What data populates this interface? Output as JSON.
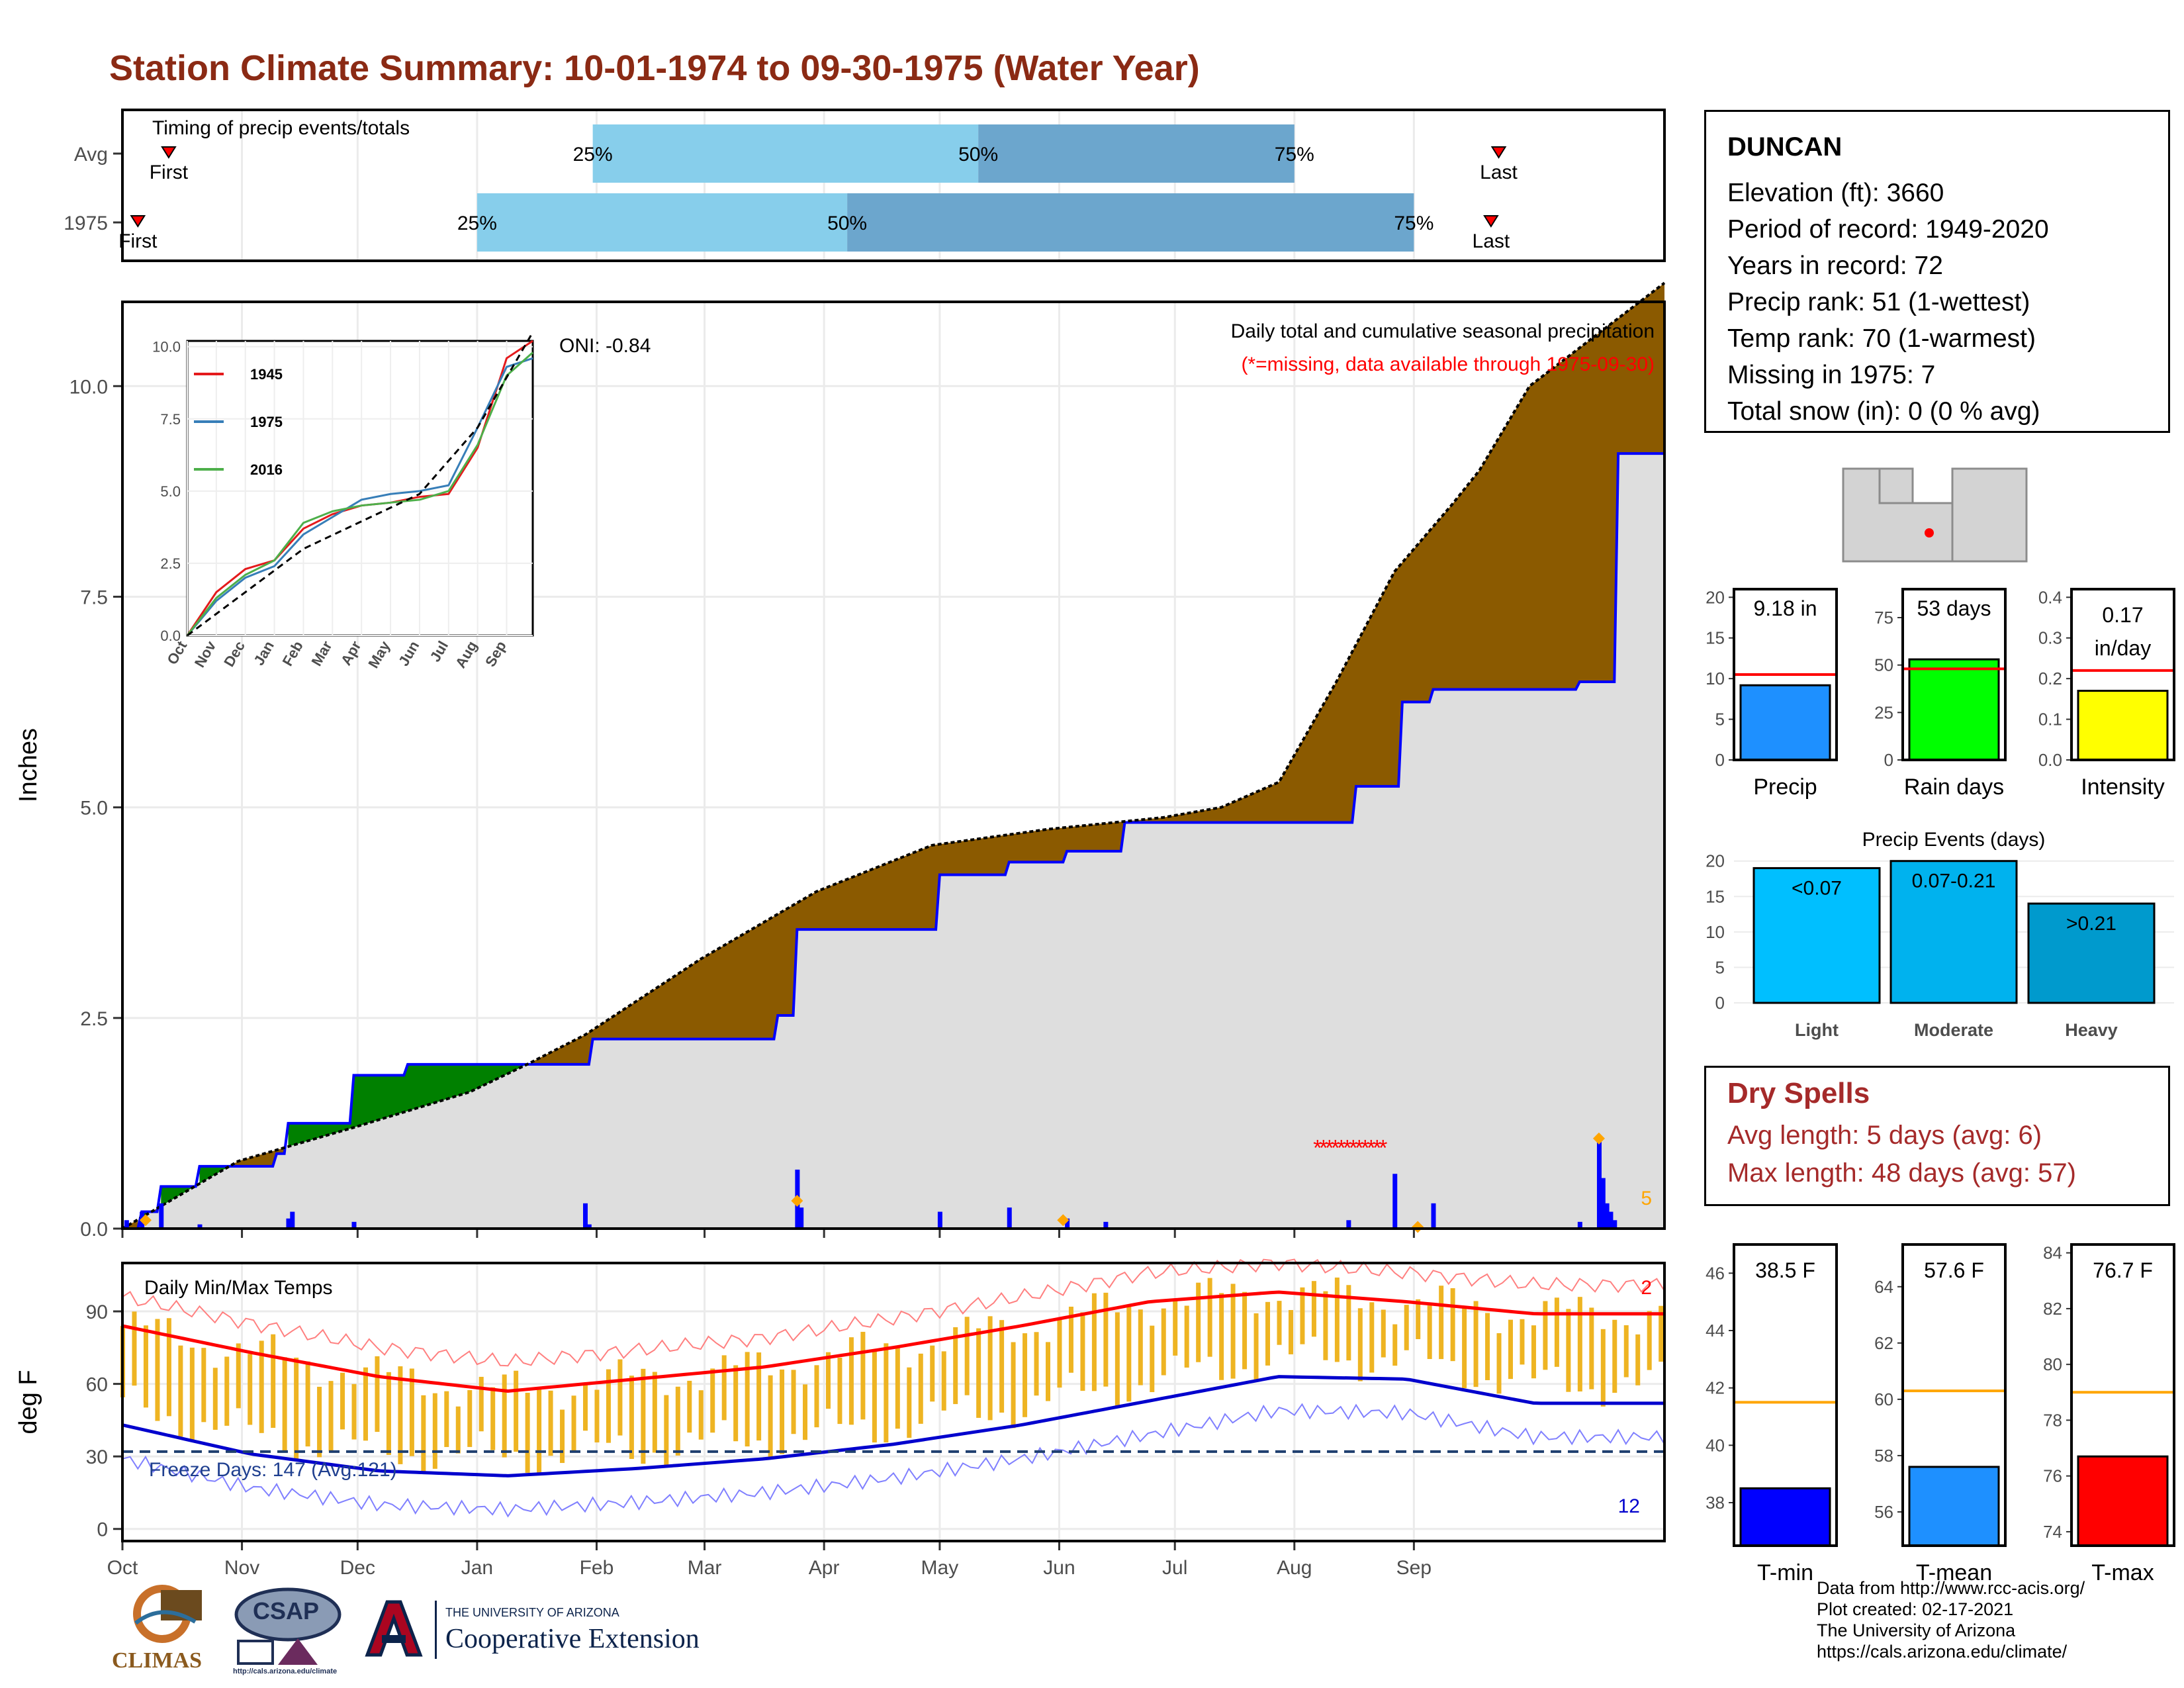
{
  "title": "Station Climate Summary: 10-01-1974 to 09-30-1975 (Water Year)",
  "station": {
    "name": "DUNCAN",
    "lines": [
      "Elevation (ft): 3660",
      "Period of record: 1949-2020",
      "Years in record: 72",
      "Precip rank: 51 (1-wettest)",
      "Temp rank: 70 (1-warmest)",
      "Missing in 1975: 7",
      "Total snow (in): 0 (0 % avg)"
    ]
  },
  "dry_spells": {
    "title": "Dry Spells",
    "avg": "Avg length: 5 days (avg: 6)",
    "max": "Max length: 48 days (avg: 57)"
  },
  "footer": {
    "lines": [
      "Data from http://www.rcc-acis.org/",
      "Plot created: 02-17-2021",
      "The University of Arizona",
      "https://cals.arizona.edu/climate/"
    ]
  },
  "logos": {
    "climas": "CLIMAS",
    "csap": "CSAP",
    "csap_url": "http://cals.arizona.edu/climate",
    "ua_small": "THE UNIVERSITY OF ARIZONA",
    "ua_big": "Cooperative Extension"
  },
  "colors": {
    "title": "#8b2a14",
    "wet": "#008000",
    "dry": "#8b5a00",
    "record_line": "#0000ff",
    "avg_line": "#000000",
    "base_fill": "#dedede",
    "temp_bar": "#eeb422",
    "precip_bar_light": "#87ceeb",
    "precip_bar_dark": "#6ca6cd"
  },
  "chart_data": [
    {
      "type": "bar",
      "id": "timing",
      "title": "Timing of precip events/totals",
      "rows": [
        {
          "label": "Avg",
          "first": "Oct 13",
          "q25": "Jan 31",
          "q50": "May 11",
          "q75": "Aug 1",
          "last": "Sep 23"
        },
        {
          "label": "1975",
          "first": "Oct 5",
          "q25": "Jan 1",
          "q50": "Apr 7",
          "q75": "Sep 1",
          "last": "Sep 21"
        }
      ],
      "labels": {
        "first": "First",
        "last": "Last",
        "q25": "25%",
        "q50": "50%",
        "q75": "75%"
      }
    },
    {
      "type": "area",
      "id": "cumulative",
      "title": "Daily total and cumulative seasonal precipitation",
      "subtitle": "(*=missing, data available through 1975-09-30)",
      "annotation": "ONI: -0.84",
      "ylabel": "Inches",
      "ylim": [
        0,
        11
      ],
      "yticks": [
        0.0,
        2.5,
        5.0,
        7.5,
        10.0
      ],
      "corner_count": "5",
      "avg_cumulative": [
        [
          0,
          0
        ],
        [
          30,
          0.8
        ],
        [
          60,
          1.2
        ],
        [
          90,
          1.62
        ],
        [
          105,
          1.95
        ],
        [
          120,
          2.3
        ],
        [
          150,
          3.2
        ],
        [
          180,
          4.0
        ],
        [
          210,
          4.55
        ],
        [
          240,
          4.74
        ],
        [
          270,
          4.88
        ],
        [
          285,
          5.0
        ],
        [
          300,
          5.3
        ],
        [
          315,
          6.5
        ],
        [
          330,
          7.8
        ],
        [
          345,
          8.6
        ],
        [
          352,
          9.0
        ],
        [
          365,
          10.0
        ]
      ],
      "observed_cumulative": [
        [
          0,
          0
        ],
        [
          5,
          0.2
        ],
        [
          10,
          0.5
        ],
        [
          20,
          0.74
        ],
        [
          40,
          0.89
        ],
        [
          43,
          1.25
        ],
        [
          60,
          1.82
        ],
        [
          74,
          1.95
        ],
        [
          120,
          1.95
        ],
        [
          122,
          2.25
        ],
        [
          170,
          2.53
        ],
        [
          175,
          3.55
        ],
        [
          212,
          4.2
        ],
        [
          230,
          4.35
        ],
        [
          245,
          4.48
        ],
        [
          260,
          4.82
        ],
        [
          300,
          4.82
        ],
        [
          320,
          5.25
        ],
        [
          332,
          6.25
        ],
        [
          340,
          6.4
        ],
        [
          378,
          6.49
        ],
        [
          388,
          9.2
        ],
        [
          400,
          9.2
        ]
      ],
      "daily_bars": [
        [
          1,
          0.1
        ],
        [
          5,
          0.2
        ],
        [
          10,
          0.3
        ],
        [
          20,
          0.05
        ],
        [
          43,
          0.12
        ],
        [
          44,
          0.2
        ],
        [
          60,
          0.08
        ],
        [
          120,
          0.3
        ],
        [
          121,
          0.05
        ],
        [
          175,
          0.7
        ],
        [
          176,
          0.25
        ],
        [
          212,
          0.2
        ],
        [
          230,
          0.25
        ],
        [
          245,
          0.12
        ],
        [
          255,
          0.08
        ],
        [
          318,
          0.1
        ],
        [
          330,
          0.65
        ],
        [
          340,
          0.3
        ],
        [
          378,
          0.08
        ],
        [
          383,
          1.1
        ],
        [
          384,
          0.6
        ],
        [
          385,
          0.3
        ],
        [
          386,
          0.2
        ],
        [
          387,
          0.1
        ]
      ],
      "missing_marks": [
        [
          310,
          0.98
        ]
      ],
      "inset": {
        "yticks": [
          0.0,
          2.5,
          5.0,
          7.5,
          10.0
        ],
        "xticks": [
          "Oct",
          "Nov",
          "Dec",
          "Jan",
          "Feb",
          "Mar",
          "Apr",
          "May",
          "Jun",
          "Jul",
          "Aug",
          "Sep"
        ],
        "series": [
          {
            "name": "1945",
            "color": "#e41a1c"
          },
          {
            "name": "1975",
            "color": "#377eb8"
          },
          {
            "name": "2016",
            "color": "#4daf4a"
          }
        ]
      }
    },
    {
      "type": "bar",
      "id": "temps",
      "title": "Daily Min/Max Temps",
      "ylabel": "deg F",
      "ylim": [
        -5,
        110
      ],
      "yticks": [
        0,
        30,
        60,
        90
      ],
      "x": [
        "Oct",
        "Nov",
        "Dec",
        "Jan",
        "Feb",
        "Mar",
        "Apr",
        "May",
        "Jun",
        "Jul",
        "Aug",
        "Sep"
      ],
      "freeze_text": "Freeze Days: 147 (Avg:121)",
      "freeze_line": 32,
      "top_count": "2",
      "bottom_count": "12",
      "avg_max_monthly": [
        84,
        73,
        63,
        57,
        62,
        67,
        75,
        84,
        94,
        98,
        94,
        89
      ],
      "avg_min_monthly": [
        43,
        31,
        24,
        22,
        25,
        29,
        35,
        43,
        53,
        63,
        62,
        52
      ]
    },
    {
      "type": "bar",
      "id": "precip_total",
      "categories": [
        "Precip"
      ],
      "values": [
        9.18
      ],
      "label": "9.18 in",
      "avg": 10.5,
      "ylim": [
        0,
        21
      ],
      "yticks": [
        0,
        5,
        10,
        15,
        20
      ],
      "color": "#1e90ff"
    },
    {
      "type": "bar",
      "id": "rain_days",
      "categories": [
        "Rain days"
      ],
      "values": [
        53
      ],
      "label": "53 days",
      "avg": 48,
      "ylim": [
        0,
        90
      ],
      "yticks": [
        0,
        25,
        50,
        75
      ],
      "color": "#00ff00"
    },
    {
      "type": "bar",
      "id": "intensity",
      "categories": [
        "Intensity"
      ],
      "values": [
        0.17
      ],
      "label": "0.17",
      "label2": "in/day",
      "avg": 0.22,
      "ylim": [
        0,
        0.42
      ],
      "yticks": [
        0.0,
        0.1,
        0.2,
        0.3,
        0.4
      ],
      "color": "#ffff00"
    },
    {
      "type": "bar",
      "id": "precip_events",
      "title": "Precip Events (days)",
      "categories": [
        "Light",
        "Moderate",
        "Heavy"
      ],
      "bar_labels": [
        "<0.07",
        "0.07-0.21",
        ">0.21"
      ],
      "values": [
        19,
        20,
        14
      ],
      "ylim": [
        0,
        21
      ],
      "yticks": [
        0,
        5,
        10,
        15,
        20
      ],
      "colors": [
        "#00bfff",
        "#00b2ee",
        "#009acd"
      ]
    },
    {
      "type": "bar",
      "id": "tmin",
      "categories": [
        "T-min"
      ],
      "values": [
        38.5
      ],
      "label": "38.5 F",
      "avg": 41.5,
      "ylim": [
        36.5,
        47
      ],
      "yticks": [
        38,
        40,
        42,
        44,
        46
      ],
      "color": "#0000ff"
    },
    {
      "type": "bar",
      "id": "tmean",
      "categories": [
        "T-mean"
      ],
      "values": [
        57.6
      ],
      "label": "57.6 F",
      "avg": 60.3,
      "ylim": [
        54.8,
        65.5
      ],
      "yticks": [
        56,
        58,
        60,
        62,
        64
      ],
      "color": "#1e90ff"
    },
    {
      "type": "bar",
      "id": "tmax",
      "categories": [
        "T-max"
      ],
      "values": [
        76.7
      ],
      "label": "76.7 F",
      "avg": 79,
      "ylim": [
        73.5,
        84.3
      ],
      "yticks": [
        74,
        76,
        78,
        80,
        82,
        84
      ],
      "color": "#ff0000"
    }
  ]
}
